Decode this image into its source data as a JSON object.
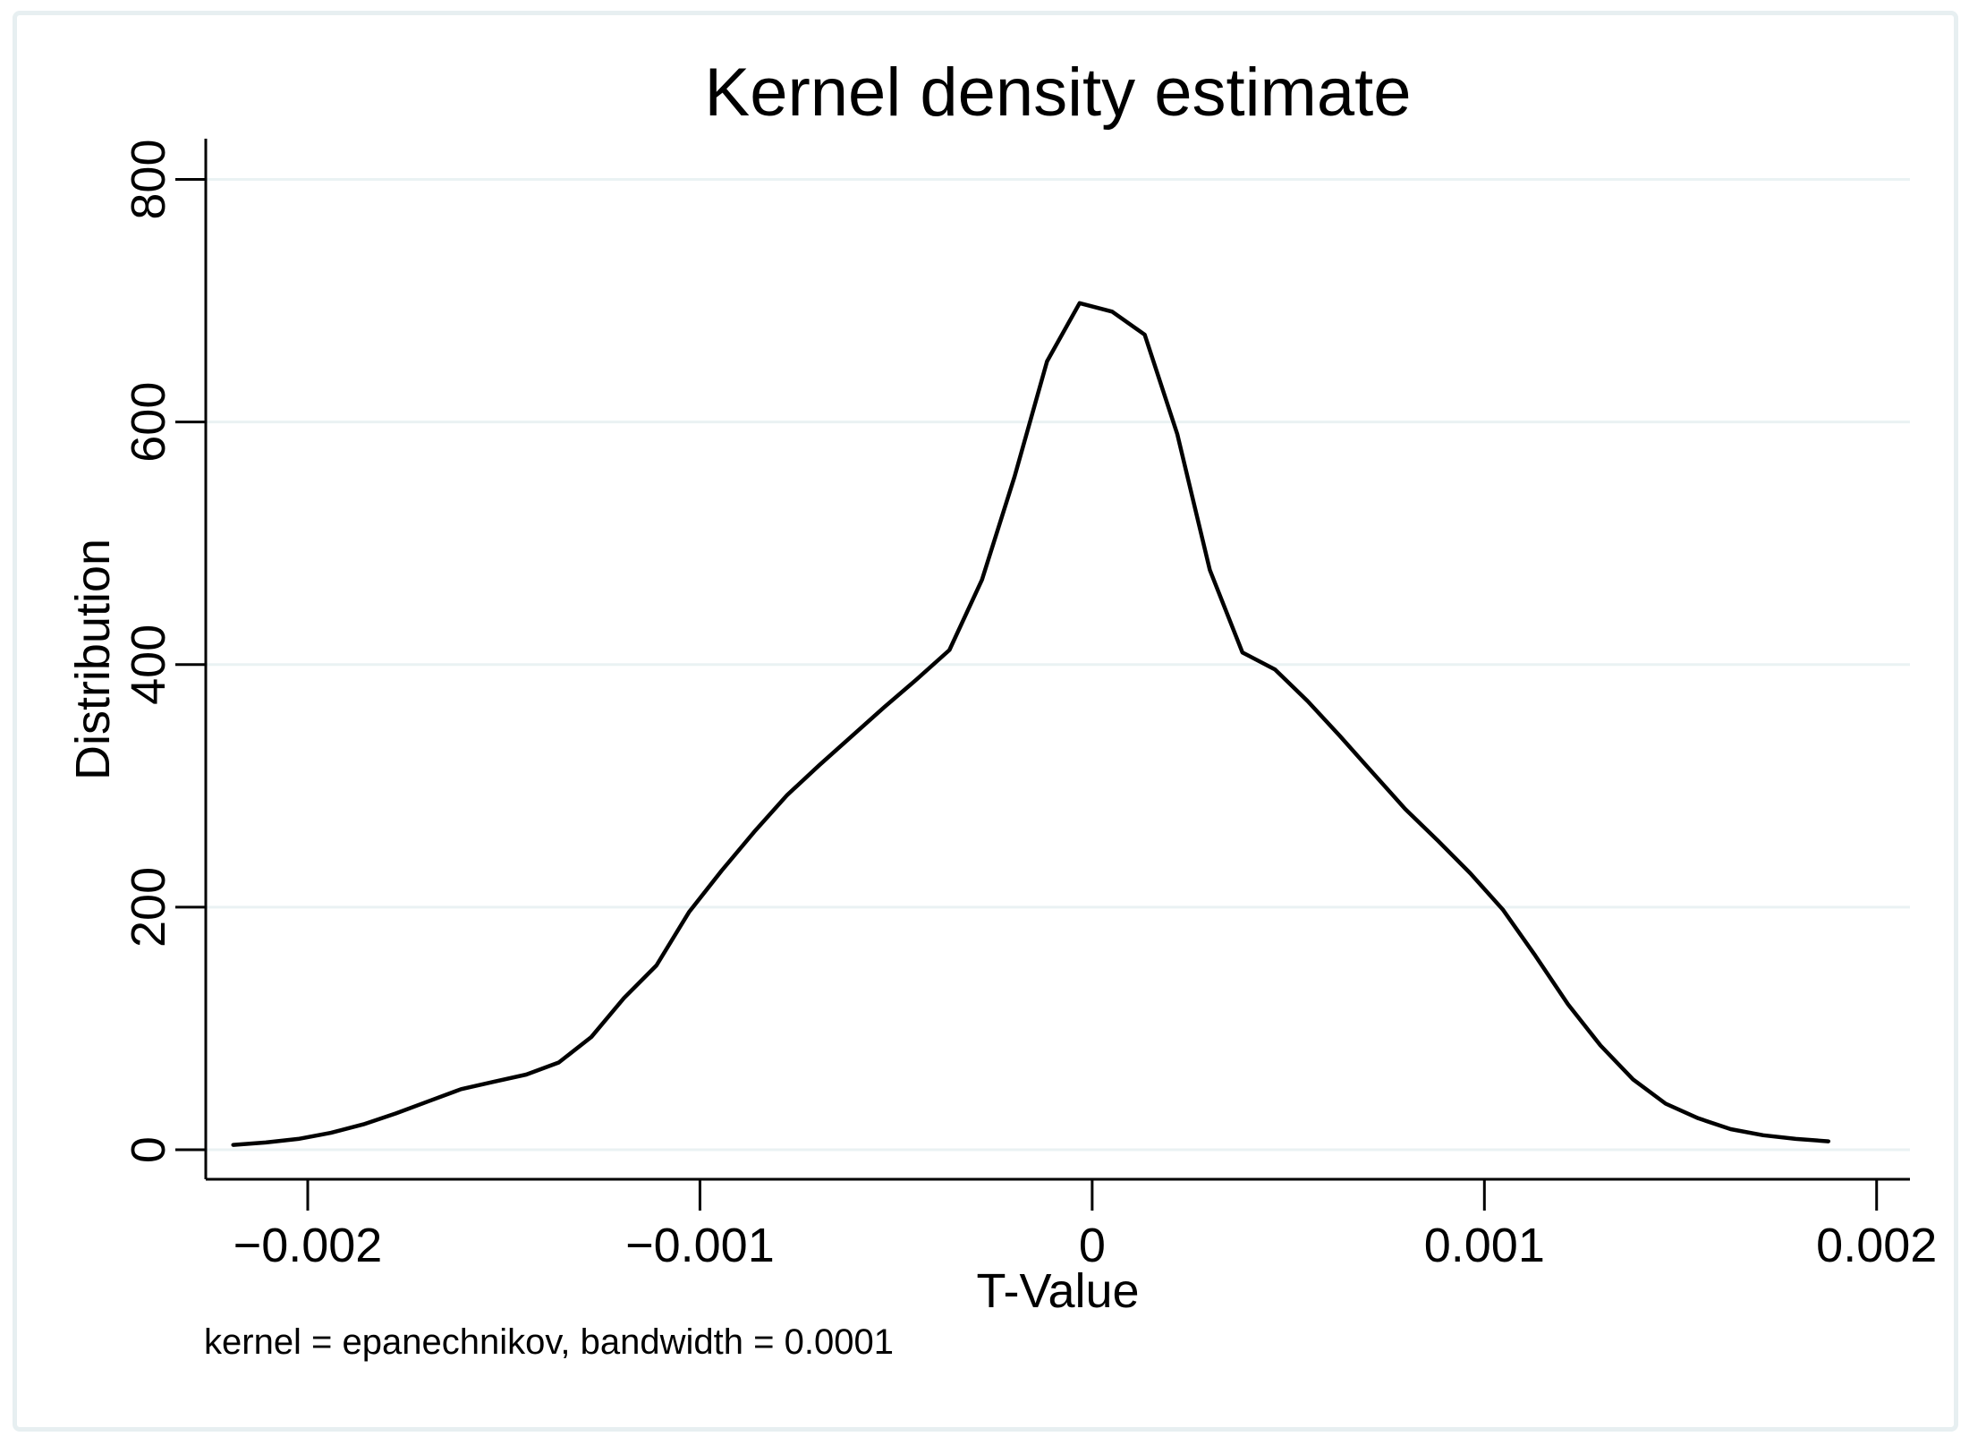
{
  "page": {
    "background_color": "#ffffff",
    "frame_border_color": "#e7eff1"
  },
  "chart": {
    "title": "Kernel density estimate",
    "y_axis_title": "Distribution",
    "x_axis_title": "T-Value",
    "note": "kernel = epanechnikov, bandwidth = 0.0001"
  },
  "chart_data": {
    "type": "line",
    "title": "Kernel density estimate",
    "xlabel": "T-Value",
    "ylabel": "Distribution",
    "note": "kernel = epanechnikov, bandwidth = 0.0001",
    "kernel": "epanechnikov",
    "bandwidth": 0.0001,
    "legend": "none",
    "grid": "horizontal",
    "xlim": [
      -0.0022,
      0.0019
    ],
    "ylim": [
      0,
      800
    ],
    "x_ticks": [
      -0.002,
      -0.001,
      0,
      0.001,
      0.002
    ],
    "x_tick_labels": [
      "−0.002",
      "−0.001",
      "0",
      "0.001",
      "0.002"
    ],
    "y_ticks": [
      0,
      200,
      400,
      600,
      800
    ],
    "y_tick_labels": [
      "0",
      "200",
      "400",
      "600",
      "800"
    ],
    "line_color": "#000000",
    "axis_color": "#000000",
    "grid_color": "#eaf2f3",
    "x": [
      -0.00219,
      -0.002107,
      -0.002024,
      -0.001941,
      -0.001858,
      -0.001775,
      -0.001692,
      -0.001609,
      -0.001526,
      -0.001443,
      -0.00136,
      -0.001277,
      -0.001194,
      -0.001111,
      -0.001028,
      -0.000945,
      -0.000862,
      -0.000779,
      -0.000696,
      -0.000613,
      -0.00053,
      -0.000447,
      -0.000364,
      -0.000281,
      -0.000198,
      -0.000115,
      -3.2e-05,
      5.1e-05,
      0.000134,
      0.000217,
      0.0003,
      0.000383,
      0.000466,
      0.000549,
      0.000632,
      0.000715,
      0.000798,
      0.000881,
      0.000964,
      0.001047,
      0.00113,
      0.001213,
      0.001296,
      0.001379,
      0.001462,
      0.001545,
      0.001628,
      0.001711,
      0.001794,
      0.001877
    ],
    "y": [
      4,
      6,
      9,
      14,
      21,
      30,
      40,
      50,
      56,
      62,
      72,
      93,
      125,
      152,
      196,
      230,
      262,
      292,
      317,
      341,
      365,
      388,
      412,
      470,
      555,
      650,
      698,
      691,
      672,
      590,
      478,
      410,
      396,
      370,
      341,
      311,
      281,
      255,
      228,
      198,
      160,
      120,
      86,
      58,
      38,
      26,
      17,
      12,
      9,
      7
    ]
  }
}
